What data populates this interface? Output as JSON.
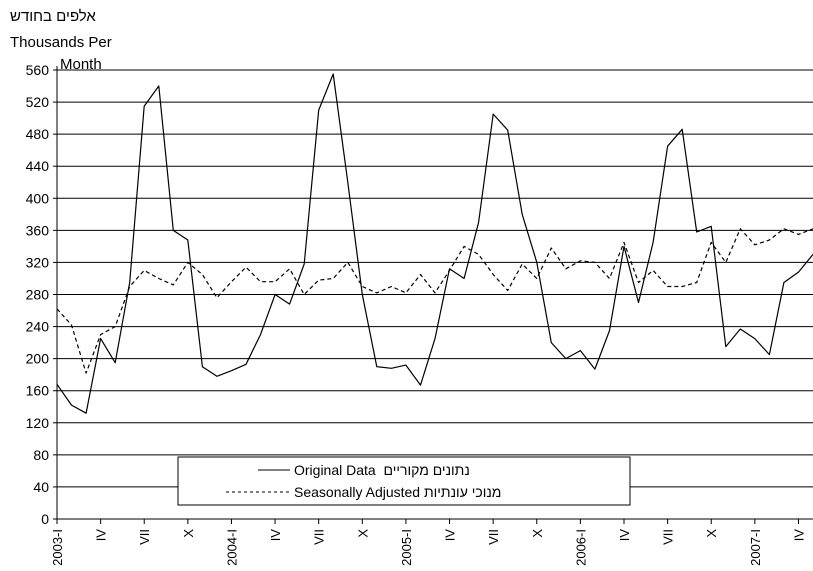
{
  "chart_data": {
    "type": "line",
    "unit_label_he": "אלפים בחודש",
    "unit_label_en_1": "Thousands Per",
    "unit_label_en_2": "Month",
    "ylim": [
      0,
      560
    ],
    "yticks": [
      0,
      40,
      80,
      120,
      160,
      200,
      240,
      280,
      320,
      360,
      400,
      440,
      480,
      520,
      560
    ],
    "grid": true,
    "legend_position": "bottom-center",
    "x_tick_labels": [
      "2003-I",
      "IV",
      "VII",
      "X",
      "2004-I",
      "IV",
      "VII",
      "X",
      "2005-I",
      "IV",
      "VII",
      "X",
      "2006-I",
      "IV",
      "VII",
      "X",
      "2007-I",
      "IV"
    ],
    "x_tick_months": [
      1,
      4,
      7,
      10,
      13,
      16,
      19,
      22,
      25,
      28,
      31,
      34,
      37,
      40,
      43,
      46,
      49,
      52
    ],
    "x_start_label": "2003-01",
    "series": [
      {
        "name": "Original Data  נתונים מקוריים",
        "style": "solid",
        "color": "#000000",
        "values": [
          168,
          142,
          132,
          225,
          195,
          295,
          515,
          540,
          360,
          348,
          190,
          178,
          185,
          193,
          230,
          280,
          268,
          318,
          510,
          555,
          420,
          280,
          190,
          188,
          192,
          167,
          225,
          312,
          300,
          370,
          505,
          485,
          380,
          320,
          220,
          200,
          210,
          187,
          235,
          340,
          270,
          345,
          465,
          486,
          358,
          365,
          215,
          237,
          225,
          205,
          295,
          308,
          330
        ]
      },
      {
        "name": "Seasonally Adjusted מנוכי עונתיות",
        "style": "dashed",
        "color": "#000000",
        "values": [
          262,
          242,
          182,
          230,
          240,
          290,
          310,
          300,
          292,
          320,
          305,
          276,
          296,
          314,
          296,
          296,
          312,
          280,
          298,
          300,
          320,
          290,
          282,
          290,
          282,
          305,
          282,
          310,
          340,
          330,
          305,
          285,
          318,
          300,
          338,
          312,
          322,
          320,
          300,
          345,
          295,
          310,
          290,
          290,
          295,
          345,
          320,
          362,
          342,
          348,
          362,
          355,
          362
        ]
      }
    ]
  }
}
